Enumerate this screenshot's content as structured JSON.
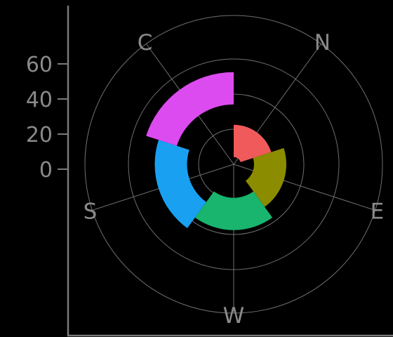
{
  "chart_data": {
    "type": "polar-bar",
    "title": "",
    "categories": [
      "N",
      "E",
      "W",
      "S",
      "C"
    ],
    "bars": [
      {
        "category": "N",
        "value": 5,
        "color": "#f05a5a"
      },
      {
        "category": "E",
        "value": 20,
        "color": "#8c8c00"
      },
      {
        "category": "W",
        "value": 35,
        "color": "#19b46e"
      },
      {
        "category": "S",
        "value": 50,
        "color": "#19a0f0"
      },
      {
        "category": "C",
        "value": 65,
        "color": "#dc4bf0"
      }
    ],
    "radial_axis": {
      "ticks": [
        0,
        20,
        40,
        60
      ],
      "tick_labels": [
        "0",
        "20",
        "40",
        "60"
      ]
    },
    "angular_labels": [
      "N",
      "E",
      "W",
      "S",
      "C"
    ],
    "grid": true,
    "legend": "none"
  }
}
